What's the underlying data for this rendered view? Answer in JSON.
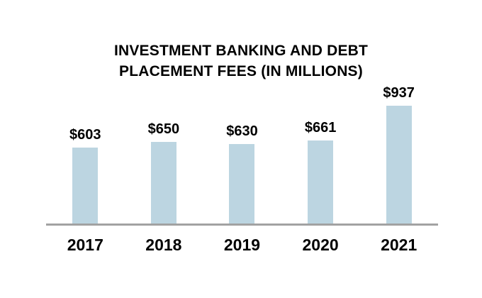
{
  "chart_data": {
    "type": "bar",
    "title": "INVESTMENT BANKING AND DEBT PLACEMENT FEES (IN MILLIONS)",
    "title_lines": [
      "INVESTMENT BANKING AND DEBT",
      "PLACEMENT FEES (IN MILLIONS)"
    ],
    "categories": [
      "2017",
      "2018",
      "2019",
      "2020",
      "2021"
    ],
    "values": [
      603,
      650,
      630,
      661,
      937
    ],
    "value_labels": [
      "$603",
      "$650",
      "$630",
      "$661",
      "$937"
    ],
    "xlabel": "",
    "ylabel": "",
    "unit": "$ millions",
    "grid": false,
    "legend": false,
    "colors": {
      "bar_fill": "#BCD5E1",
      "axis_line": "#A2A2A2",
      "text": "#000000",
      "background": "#FFFFFF"
    }
  }
}
